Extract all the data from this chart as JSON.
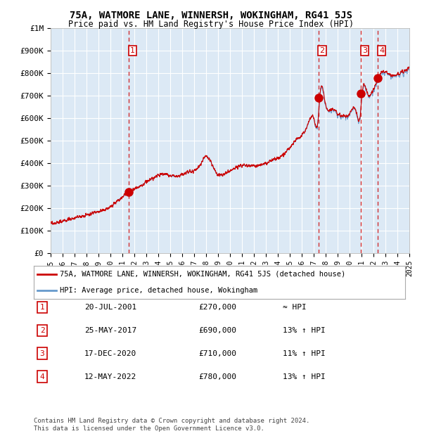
{
  "title": "75A, WATMORE LANE, WINNERSH, WOKINGHAM, RG41 5JS",
  "subtitle": "Price paid vs. HM Land Registry's House Price Index (HPI)",
  "ylabel": "",
  "background_color": "#dce9f5",
  "plot_bg_color": "#dce9f5",
  "grid_color": "#ffffff",
  "sale_dates": [
    "2001-07-20",
    "2017-05-25",
    "2020-12-17",
    "2022-05-12"
  ],
  "sale_prices": [
    270000,
    690000,
    710000,
    780000
  ],
  "sale_labels": [
    "1",
    "2",
    "3",
    "4"
  ],
  "sale_relations": [
    "≈ HPI",
    "13% ↑ HPI",
    "11% ↑ HPI",
    "13% ↑ HPI"
  ],
  "sale_label_dates_str": [
    "20-JUL-2001",
    "25-MAY-2017",
    "17-DEC-2020",
    "12-MAY-2022"
  ],
  "sale_prices_str": [
    "£270,000",
    "£690,000",
    "£710,000",
    "£780,000"
  ],
  "hpi_color": "#6699cc",
  "price_color": "#cc0000",
  "marker_color": "#cc0000",
  "dashed_vline_color": "#cc0000",
  "legend_line1": "75A, WATMORE LANE, WINNERSH, WOKINGHAM, RG41 5JS (detached house)",
  "legend_line2": "HPI: Average price, detached house, Wokingham",
  "footer": "Contains HM Land Registry data © Crown copyright and database right 2024.\nThis data is licensed under the Open Government Licence v3.0.",
  "xmin": 1995,
  "xmax": 2025,
  "ymin": 0,
  "ymax": 1000000,
  "yticks": [
    0,
    100000,
    200000,
    300000,
    400000,
    500000,
    600000,
    700000,
    800000,
    900000,
    1000000
  ],
  "ytick_labels": [
    "£0",
    "£100K",
    "£200K",
    "£300K",
    "£400K",
    "£500K",
    "£600K",
    "£700K",
    "£800K",
    "£900K",
    "£1M"
  ]
}
